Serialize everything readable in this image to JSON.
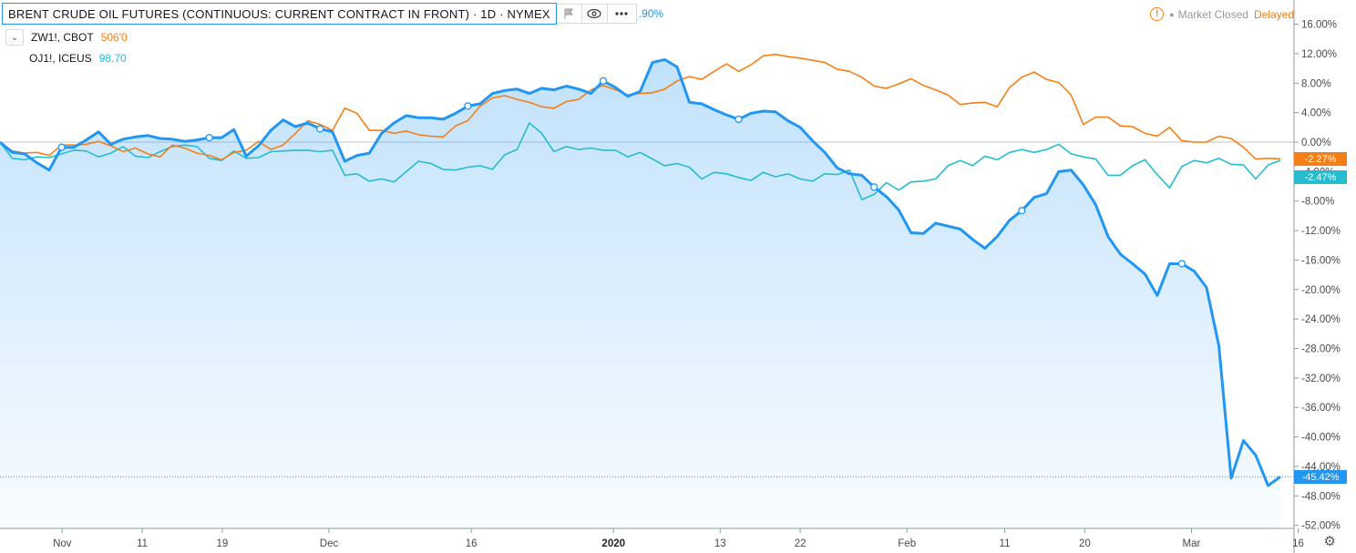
{
  "legend": {
    "title": "BRENT CRUDE OIL FUTURES (CONTINUOUS: CURRENT CONTRACT IN FRONT) · 1D · NYMEX",
    "partial_value": ".90%",
    "flag_icon": "flag-icon",
    "eye_icon": "eye-icon",
    "more_icon": "more-dots-icon"
  },
  "comparisons": [
    {
      "symbol": "ZW1!, CBOT",
      "value": "506'0",
      "color": "#f57f17"
    },
    {
      "symbol": "OJ1!, ICEUS",
      "value": "98.70",
      "color": "#26bcd0"
    }
  ],
  "status": {
    "market": "Market Closed",
    "delayed": "Delayed"
  },
  "price_tags": [
    {
      "label": "-2.27%",
      "color": "#f57f17",
      "value": -2.27
    },
    {
      "label": "-2.47%",
      "color": "#26bcd0",
      "value": -2.47
    },
    {
      "label": "-45.42%",
      "color": "#2196f3",
      "value": -45.42
    }
  ],
  "chart_data": {
    "type": "line",
    "y_unit": "%",
    "ylim": [
      -52,
      18
    ],
    "y_ticks": [
      "16.00%",
      "12.00%",
      "8.00%",
      "4.00%",
      "0.00%",
      "-4.00%",
      "-8.00%",
      "-12.00%",
      "-16.00%",
      "-20.00%",
      "-24.00%",
      "-28.00%",
      "-32.00%",
      "-36.00%",
      "-40.00%",
      "-44.00%",
      "-48.00%",
      "-52.00%"
    ],
    "x_ticks": [
      "Nov",
      "11",
      "19",
      "Dec",
      "16",
      "2020",
      "13",
      "22",
      "Feb",
      "11",
      "20",
      "Mar",
      "16"
    ],
    "series": [
      {
        "name": "BRENT CRUDE OIL FUTURES",
        "color": "#2196f3",
        "values": [
          0.0,
          -1.4,
          -1.6,
          -2.8,
          -3.8,
          -0.7,
          -0.7,
          0.3,
          1.4,
          -0.3,
          0.4,
          0.7,
          0.9,
          0.5,
          0.4,
          0.1,
          0.3,
          0.6,
          0.6,
          1.7,
          -1.9,
          -0.5,
          1.6,
          3.0,
          2.1,
          2.6,
          1.8,
          1.4,
          -2.6,
          -1.8,
          -1.5,
          1.2,
          2.6,
          3.6,
          3.3,
          3.3,
          3.1,
          3.9,
          4.9,
          5.2,
          6.6,
          7.0,
          7.2,
          6.6,
          7.3,
          7.1,
          7.6,
          7.2,
          6.6,
          8.3,
          7.4,
          6.2,
          6.9,
          10.8,
          11.2,
          10.2,
          5.4,
          5.2,
          4.4,
          3.7,
          3.1,
          3.9,
          4.2,
          4.1,
          2.9,
          2.0,
          0.2,
          -1.4,
          -3.5,
          -4.3,
          -4.5,
          -6.1,
          -7.4,
          -9.2,
          -12.3,
          -12.4,
          -11.0,
          -11.4,
          -11.8,
          -13.2,
          -14.4,
          -12.8,
          -10.6,
          -9.3,
          -7.5,
          -7.0,
          -4.0,
          -3.8,
          -5.8,
          -8.5,
          -12.8,
          -15.2,
          -16.5,
          -17.9,
          -20.8,
          -16.5,
          -16.5,
          -17.5,
          -19.7,
          -27.6,
          -45.6,
          -40.5,
          -42.5,
          -46.6,
          -45.4
        ]
      },
      {
        "name": "ZW1!, CBOT",
        "color": "#f57f17",
        "values": [
          0.0,
          -1.2,
          -1.5,
          -1.4,
          -1.8,
          -0.4,
          -0.4,
          -0.3,
          0.1,
          -0.5,
          -1.3,
          -0.8,
          -1.6,
          -2.0,
          -0.4,
          -0.8,
          -1.5,
          -1.8,
          -2.4,
          -1.4,
          -1.1,
          0.1,
          -1.0,
          -0.4,
          1.2,
          2.9,
          2.4,
          1.6,
          4.6,
          3.9,
          1.6,
          1.6,
          1.2,
          1.5,
          1.0,
          0.8,
          0.7,
          2.2,
          2.9,
          4.9,
          6.0,
          6.3,
          5.8,
          5.4,
          4.8,
          4.6,
          5.5,
          5.8,
          7.1,
          7.7,
          7.1,
          6.4,
          6.6,
          6.7,
          7.2,
          8.3,
          8.9,
          8.5,
          9.6,
          10.6,
          9.6,
          10.5,
          11.7,
          11.9,
          11.6,
          11.4,
          11.1,
          10.8,
          9.9,
          9.6,
          8.8,
          7.6,
          7.3,
          7.9,
          8.6,
          7.7,
          7.1,
          6.4,
          5.1,
          5.3,
          5.4,
          4.8,
          7.4,
          8.8,
          9.5,
          8.5,
          8.1,
          6.4,
          2.4,
          3.4,
          3.4,
          2.2,
          2.1,
          1.2,
          0.8,
          2.0,
          0.2,
          0.0,
          0.0,
          0.8,
          0.5,
          -0.7,
          -2.3,
          -2.2,
          -2.27
        ]
      },
      {
        "name": "OJ1!, ICEUS",
        "color": "#26bcd0",
        "values": [
          0.0,
          -2.2,
          -2.4,
          -2.0,
          -2.1,
          -1.6,
          -1.1,
          -1.2,
          -2.0,
          -1.5,
          -0.6,
          -1.9,
          -2.1,
          -1.3,
          -0.6,
          -0.4,
          -0.6,
          -2.2,
          -2.5,
          -1.2,
          -2.2,
          -2.1,
          -1.3,
          -1.2,
          -1.1,
          -1.1,
          -1.3,
          -1.1,
          -4.5,
          -4.3,
          -5.3,
          -5.0,
          -5.4,
          -4.0,
          -2.6,
          -2.9,
          -3.7,
          -3.8,
          -3.4,
          -3.2,
          -3.7,
          -1.7,
          -1.0,
          2.6,
          1.2,
          -1.3,
          -0.6,
          -1.0,
          -0.8,
          -1.1,
          -1.1,
          -2.0,
          -1.4,
          -2.3,
          -3.2,
          -2.9,
          -3.4,
          -5.0,
          -4.1,
          -4.3,
          -4.8,
          -5.2,
          -4.1,
          -4.7,
          -4.3,
          -5.0,
          -5.3,
          -4.3,
          -4.4,
          -3.8,
          -7.8,
          -7.1,
          -5.5,
          -6.5,
          -5.4,
          -5.3,
          -5.0,
          -3.2,
          -2.5,
          -3.2,
          -1.9,
          -2.4,
          -1.4,
          -1.0,
          -1.4,
          -1.0,
          -0.3,
          -1.6,
          -2.0,
          -2.3,
          -4.5,
          -4.5,
          -3.2,
          -2.4,
          -4.4,
          -6.2,
          -3.3,
          -2.5,
          -2.8,
          -2.2,
          -3.0,
          -3.1,
          -5.0,
          -3.1,
          -2.47
        ]
      }
    ]
  }
}
